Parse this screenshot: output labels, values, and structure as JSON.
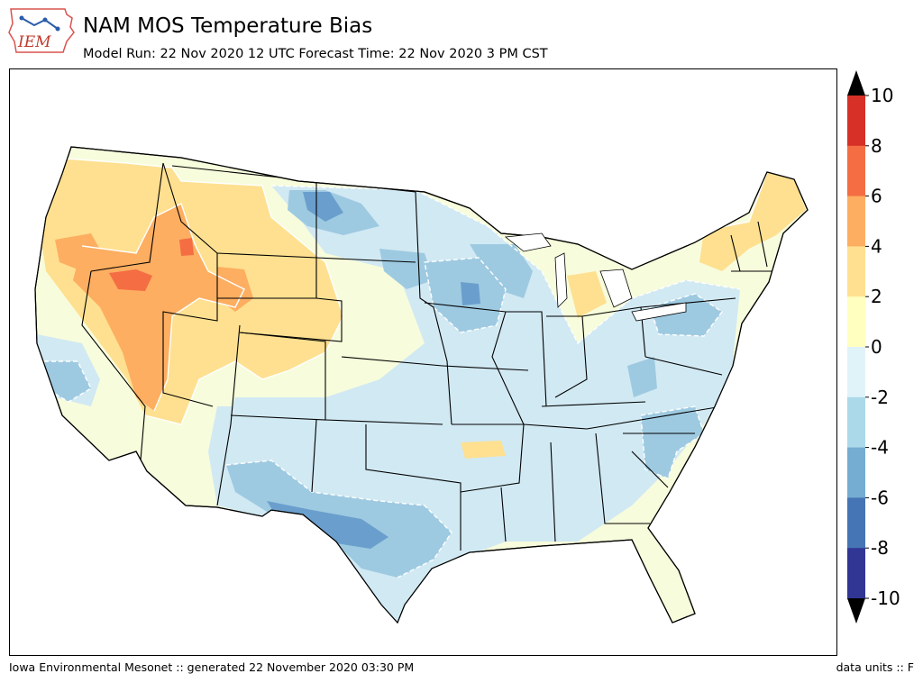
{
  "header": {
    "title": "NAM MOS Temperature Bias",
    "subtitle": "Model Run: 22 Nov 2020 12 UTC Forecast Time: 22 Nov 2020 3 PM CST",
    "logo_text": "IEM"
  },
  "footer": {
    "left": "Iowa Environmental Mesonet :: generated 22 November 2020 03:30 PM",
    "right": "data units :: F"
  },
  "colorbar": {
    "levels": [
      -10,
      -8,
      -6,
      -4,
      -2,
      0,
      2,
      4,
      6,
      8,
      10
    ],
    "tick_labels": [
      "10",
      "8",
      "6",
      "4",
      "2",
      "0",
      "-2",
      "-4",
      "-6",
      "-8",
      "-10"
    ],
    "colors_top_to_bottom": [
      "#d73027",
      "#f46d43",
      "#fdae61",
      "#fee090",
      "#ffffbf",
      "#e0f3f8",
      "#abd9e9",
      "#74add1",
      "#4575b4",
      "#313695"
    ],
    "arrow_high": "#000000",
    "arrow_low": "#000000"
  },
  "map": {
    "region": "Contiguous United States",
    "palette": {
      "strong_warm": "#f46d43",
      "warm": "#fdae61",
      "mild_warm": "#fee090",
      "near_zero": "#f7fcdc",
      "mild_cool": "#d1e9f3",
      "cool": "#9ecae1",
      "strong_cool": "#6a9fcd",
      "very_cool": "#4575b4"
    }
  }
}
